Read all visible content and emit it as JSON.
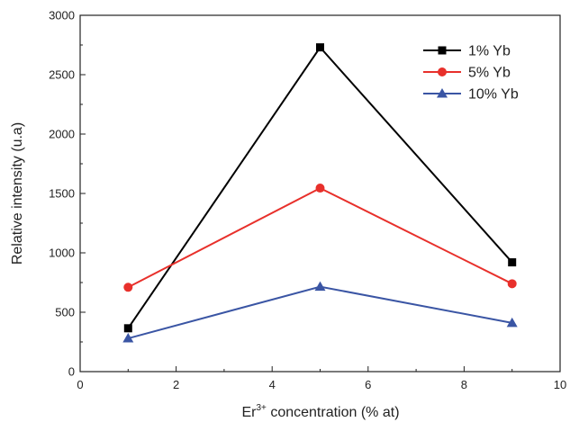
{
  "chart_data": {
    "type": "line",
    "title": "",
    "xlabel": "Er",
    "xlabel_superscript": "3+",
    "xlabel_suffix": " concentration (% at)",
    "ylabel": "Relative intensity (u.a)",
    "xlim": [
      0,
      10
    ],
    "ylim": [
      0,
      3000
    ],
    "x_ticks": [
      0,
      2,
      4,
      6,
      8,
      10
    ],
    "y_ticks": [
      0,
      500,
      1000,
      1500,
      2000,
      2500,
      3000
    ],
    "grid": false,
    "legend_position": "top-right",
    "x": [
      1,
      5,
      9
    ],
    "series": [
      {
        "name": "1% Yb",
        "values": [
          365,
          2730,
          920
        ],
        "color": "#000000",
        "marker": "square"
      },
      {
        "name": "5% Yb",
        "values": [
          710,
          1545,
          740
        ],
        "color": "#e8302b",
        "marker": "circle"
      },
      {
        "name": "10% Yb",
        "values": [
          280,
          715,
          410
        ],
        "color": "#3a55a4",
        "marker": "triangle"
      }
    ]
  }
}
